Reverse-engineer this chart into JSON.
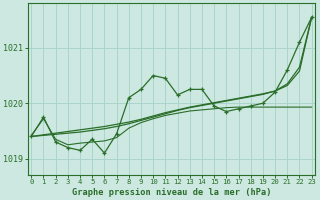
{
  "title": "Graphe pression niveau de la mer (hPa)",
  "x_labels": [
    "0",
    "1",
    "2",
    "3",
    "4",
    "5",
    "6",
    "7",
    "8",
    "9",
    "10",
    "11",
    "12",
    "13",
    "14",
    "15",
    "16",
    "17",
    "18",
    "19",
    "20",
    "21",
    "22",
    "23"
  ],
  "ylim": [
    1018.7,
    1021.8
  ],
  "yticks": [
    1019,
    1020,
    1021
  ],
  "background_color": "#cce8e0",
  "grid_color": "#aad4cc",
  "line_color": "#2a6e2a",
  "line_main": [
    1019.4,
    1019.75,
    1019.3,
    1019.2,
    1019.15,
    1019.35,
    1019.1,
    1019.45,
    1020.1,
    1020.25,
    1020.5,
    1020.45,
    1020.15,
    1020.25,
    1020.25,
    1019.95,
    1019.85,
    1019.9,
    1019.95,
    1020.0,
    1020.2,
    1020.6,
    1021.1,
    1021.55
  ],
  "line_smooth1": [
    1019.4,
    1019.42,
    1019.44,
    1019.46,
    1019.48,
    1019.51,
    1019.54,
    1019.58,
    1019.63,
    1019.69,
    1019.75,
    1019.81,
    1019.87,
    1019.92,
    1019.96,
    1020.0,
    1020.04,
    1020.08,
    1020.12,
    1020.16,
    1020.22,
    1020.35,
    1020.65,
    1021.55
  ],
  "line_smooth2": [
    1019.4,
    1019.43,
    1019.46,
    1019.49,
    1019.52,
    1019.55,
    1019.58,
    1019.62,
    1019.66,
    1019.71,
    1019.77,
    1019.83,
    1019.88,
    1019.93,
    1019.97,
    1020.01,
    1020.05,
    1020.09,
    1020.13,
    1020.17,
    1020.22,
    1020.32,
    1020.58,
    1021.55
  ],
  "line_flat": [
    1019.42,
    1019.72,
    1019.35,
    1019.25,
    1019.28,
    1019.3,
    1019.32,
    1019.38,
    1019.55,
    1019.65,
    1019.72,
    1019.78,
    1019.82,
    1019.86,
    1019.88,
    1019.9,
    1019.92,
    1019.93,
    1019.93,
    1019.93,
    1019.93,
    1019.93,
    1019.93,
    1019.93
  ]
}
